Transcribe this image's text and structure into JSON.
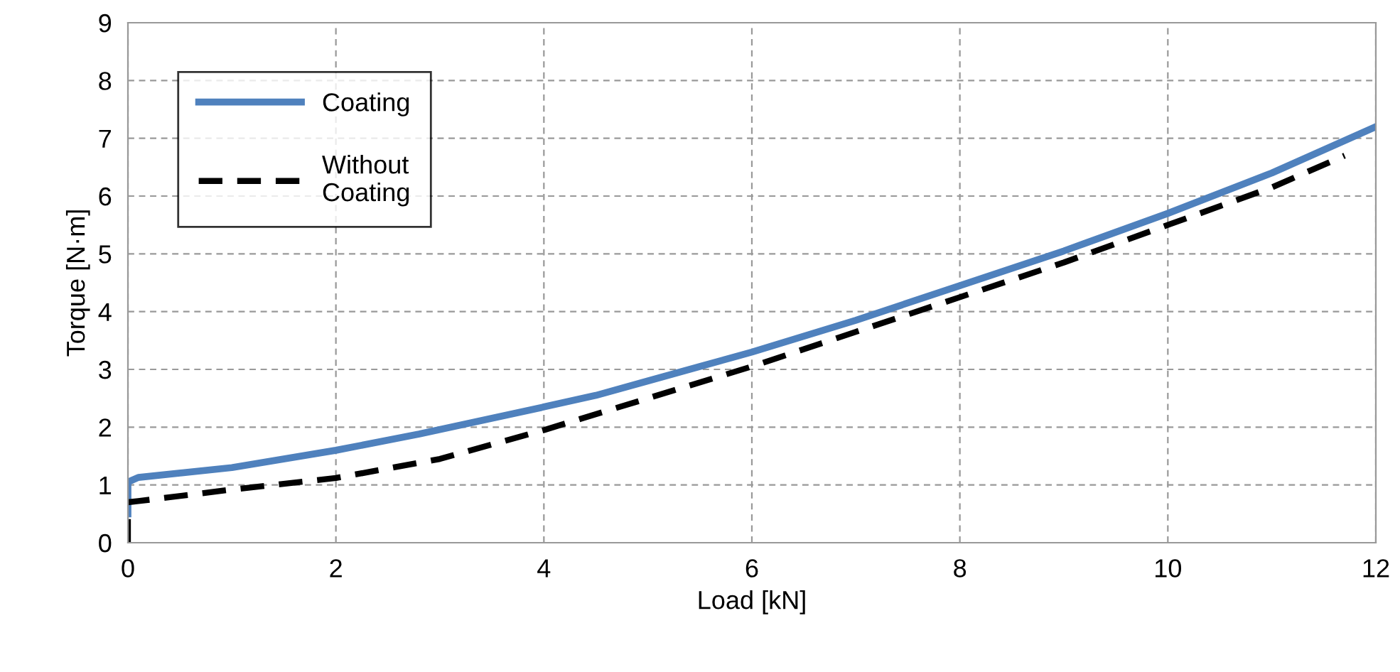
{
  "chart_data": {
    "type": "line",
    "xlabel": "Load [kN]",
    "ylabel": "Torque [N·m]",
    "xlim": [
      0,
      12
    ],
    "xticks": [
      0,
      2,
      4,
      6,
      8,
      10,
      12
    ],
    "ylim": [
      0,
      9
    ],
    "yticks": [
      0,
      1,
      2,
      3,
      4,
      5,
      6,
      7,
      8,
      9
    ],
    "grid": true,
    "legend": "top left",
    "series": [
      {
        "name": "Coating",
        "color": "#4f81bd",
        "line_style": "solid",
        "x": [
          0,
          0,
          0.1,
          1,
          2,
          2.8,
          4,
          4.5,
          5,
          6,
          7,
          8,
          9,
          10,
          11,
          12
        ],
        "values": [
          0.5,
          1.05,
          1.13,
          1.3,
          1.6,
          1.88,
          2.35,
          2.55,
          2.8,
          3.3,
          3.85,
          4.45,
          5.05,
          5.7,
          6.4,
          7.2
        ]
      },
      {
        "name": "Without\nCoating",
        "color": "#000000",
        "line_style": "dashed",
        "x": [
          0,
          0,
          0.1,
          1,
          2,
          3,
          4,
          5,
          6,
          7,
          8,
          9,
          10,
          11,
          11.7
        ],
        "values": [
          0,
          0.7,
          0.72,
          0.92,
          1.12,
          1.45,
          1.95,
          2.5,
          3.05,
          3.65,
          4.25,
          4.85,
          5.5,
          6.15,
          6.7
        ]
      }
    ]
  }
}
